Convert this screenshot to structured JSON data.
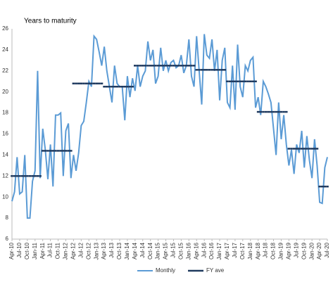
{
  "chart_data": {
    "type": "line",
    "title": "Years to maturity",
    "categories": [
      "Apr-10",
      null,
      null,
      "Jul-10",
      null,
      null,
      "Oct-10",
      null,
      null,
      "Jan-11",
      null,
      null,
      "Apr-11",
      null,
      null,
      "Jul-11",
      null,
      null,
      "Oct-11",
      null,
      null,
      "Jan-12",
      null,
      null,
      "Apr-12",
      null,
      null,
      "Jul-12",
      null,
      null,
      "Oct-12",
      null,
      null,
      "Jan-13",
      null,
      null,
      "Apr-13",
      null,
      null,
      "Jul-13",
      null,
      null,
      "Oct-13",
      null,
      null,
      "Jan-14",
      null,
      null,
      "Apr-14",
      null,
      null,
      "Jul-14",
      null,
      null,
      "Oct-14",
      null,
      null,
      "Jan-15",
      null,
      null,
      "Apr-15",
      null,
      null,
      "Jul-15",
      null,
      null,
      "Oct-15",
      null,
      null,
      "Jan-16",
      null,
      null,
      "Apr-16",
      null,
      null,
      "Jul-16",
      null,
      null,
      "Oct-16",
      null,
      null,
      "Jan-17",
      null,
      null,
      "Apr-17",
      null,
      null,
      "Jul-17",
      null,
      null,
      "Oct-17",
      null,
      null,
      "Jan-18",
      null,
      null,
      "Apr-18",
      null,
      null,
      "Jul-18",
      null,
      null,
      "Oct-18",
      null,
      null,
      "Jan-19",
      null,
      null,
      "Apr-19",
      null,
      null,
      "Jul-19",
      null,
      null,
      "Oct-19",
      null,
      null,
      "Jan-20",
      null,
      null,
      "Apr-20",
      null,
      null,
      "Jul-20"
    ],
    "series": [
      {
        "name": "Monthly",
        "color": "#5b9bd5",
        "style": "line",
        "values": [
          9.6,
          10.5,
          13.8,
          10.3,
          10.5,
          14.0,
          8.0,
          8.0,
          11.5,
          12.5,
          22.0,
          11.8,
          16.5,
          14.5,
          11.7,
          15.0,
          11.0,
          17.8,
          17.8,
          18.0,
          12.0,
          16.3,
          17.0,
          11.8,
          14.0,
          12.5,
          14.2,
          16.8,
          17.2,
          19.0,
          21.0,
          20.5,
          25.3,
          25.0,
          23.8,
          22.5,
          24.3,
          22.0,
          20.5,
          19.0,
          22.5,
          20.8,
          20.5,
          20.5,
          17.3,
          21.5,
          19.5,
          21.3,
          20.1,
          22.5,
          20.5,
          21.5,
          22.0,
          24.8,
          23.0,
          24.0,
          20.8,
          21.5,
          24.2,
          22.0,
          23.0,
          22.0,
          22.8,
          23.0,
          22.3,
          22.5,
          23.5,
          21.8,
          22.5,
          25.0,
          21.5,
          20.5,
          25.3,
          22.0,
          18.8,
          25.5,
          23.5,
          23.2,
          25.0,
          22.0,
          24.0,
          19.2,
          23.0,
          24.2,
          19.0,
          18.5,
          22.5,
          18.3,
          24.5,
          20.5,
          19.5,
          22.5,
          22.0,
          23.0,
          23.3,
          18.5,
          19.5,
          17.8,
          21.0,
          20.5,
          19.8,
          19.0,
          16.5,
          14.0,
          19.0,
          15.5,
          17.8,
          15.0,
          13.0,
          14.5,
          12.2,
          15.0,
          14.2,
          16.3,
          12.8,
          15.8,
          13.5,
          11.8,
          15.5,
          13.0,
          9.5,
          9.4,
          12.8,
          13.8
        ]
      },
      {
        "name": "FY ave",
        "color": "#1f3a5f",
        "style": "step",
        "values": [
          12.0,
          12.0,
          12.0,
          12.0,
          12.0,
          12.0,
          12.0,
          12.0,
          12.0,
          12.0,
          12.0,
          12.0,
          14.4,
          14.4,
          14.4,
          14.4,
          14.4,
          14.4,
          14.4,
          14.4,
          14.4,
          14.4,
          14.4,
          14.4,
          20.8,
          20.8,
          20.8,
          20.8,
          20.8,
          20.8,
          20.8,
          20.8,
          20.8,
          20.8,
          20.8,
          20.8,
          20.5,
          20.5,
          20.5,
          20.5,
          20.5,
          20.5,
          20.5,
          20.5,
          20.5,
          20.5,
          20.5,
          20.5,
          22.5,
          22.5,
          22.5,
          22.5,
          22.5,
          22.5,
          22.5,
          22.5,
          22.5,
          22.5,
          22.5,
          22.5,
          22.5,
          22.5,
          22.5,
          22.5,
          22.5,
          22.5,
          22.5,
          22.5,
          22.5,
          22.5,
          22.5,
          22.5,
          22.1,
          22.1,
          22.1,
          22.1,
          22.1,
          22.1,
          22.1,
          22.1,
          22.1,
          22.1,
          22.1,
          22.1,
          21.0,
          21.0,
          21.0,
          21.0,
          21.0,
          21.0,
          21.0,
          21.0,
          21.0,
          21.0,
          21.0,
          21.0,
          18.1,
          18.1,
          18.1,
          18.1,
          18.1,
          18.1,
          18.1,
          18.1,
          18.1,
          18.1,
          18.1,
          18.1,
          14.6,
          14.6,
          14.6,
          14.6,
          14.6,
          14.6,
          14.6,
          14.6,
          14.6,
          14.6,
          14.6,
          14.6,
          11.0,
          11.0,
          11.0,
          11.0
        ]
      }
    ],
    "ylim": [
      6,
      26
    ],
    "yticks": [
      6,
      8,
      10,
      12,
      14,
      16,
      18,
      20,
      22,
      24,
      26
    ],
    "grid": false,
    "legend": "bottom"
  }
}
